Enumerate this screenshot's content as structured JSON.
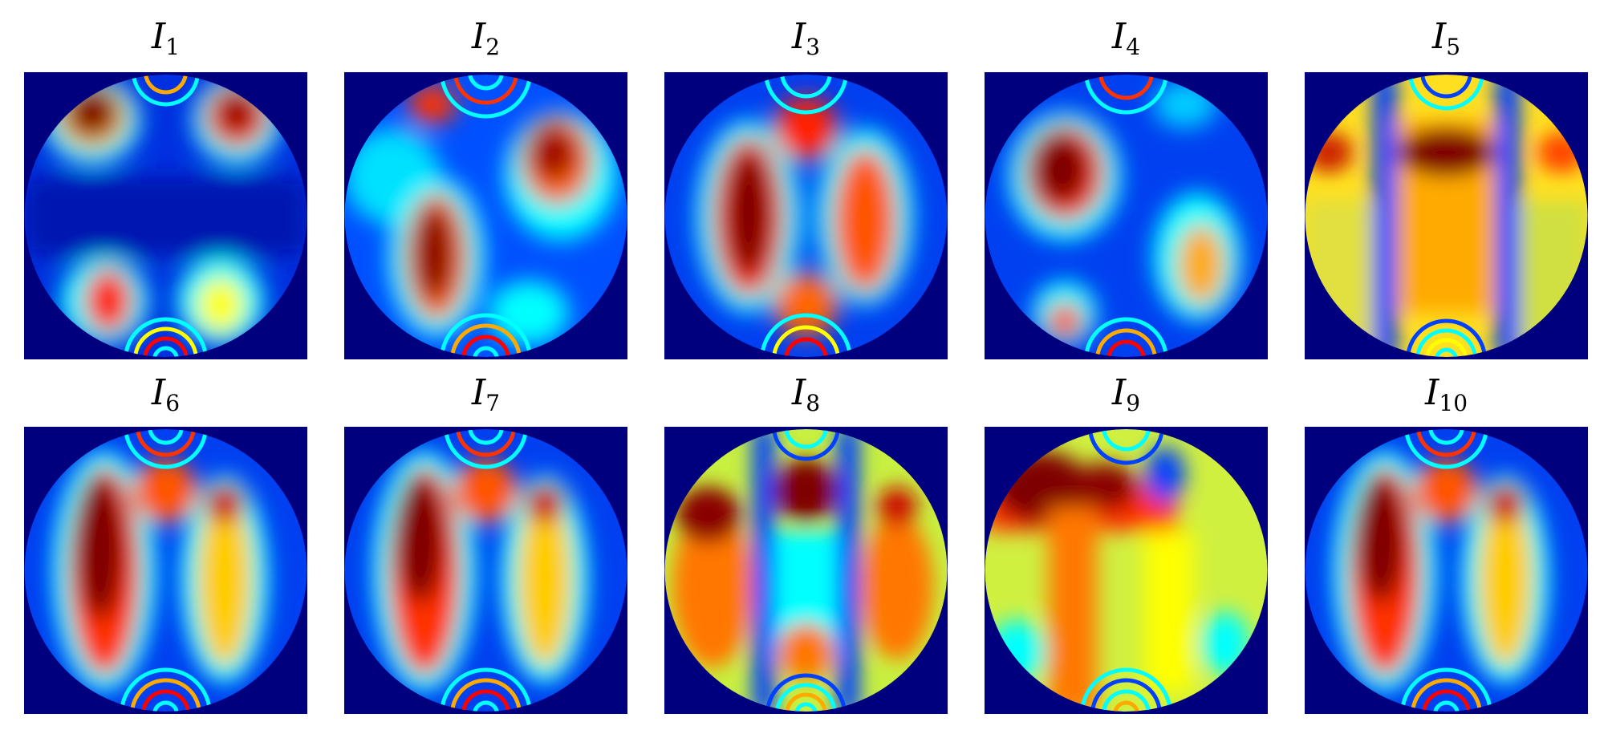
{
  "panels": [
    {
      "symbol": "I",
      "sub": "1",
      "variant": "p1"
    },
    {
      "symbol": "I",
      "sub": "2",
      "variant": "p2"
    },
    {
      "symbol": "I",
      "sub": "3",
      "variant": "p3"
    },
    {
      "symbol": "I",
      "sub": "4",
      "variant": "p4"
    },
    {
      "symbol": "I",
      "sub": "5",
      "variant": "p5"
    },
    {
      "symbol": "I",
      "sub": "6",
      "variant": "p6"
    },
    {
      "symbol": "I",
      "sub": "7",
      "variant": "p7"
    },
    {
      "symbol": "I",
      "sub": "8",
      "variant": "p8"
    },
    {
      "symbol": "I",
      "sub": "9",
      "variant": "p9"
    },
    {
      "symbol": "I",
      "sub": "10",
      "variant": "p10"
    }
  ],
  "colors": {
    "background": "#00007f",
    "jet_blue": "#0000ff",
    "jet_cyan": "#00ffff",
    "jet_yellow": "#ffff00",
    "jet_red": "#ff0000",
    "jet_darkred": "#7f0000"
  }
}
